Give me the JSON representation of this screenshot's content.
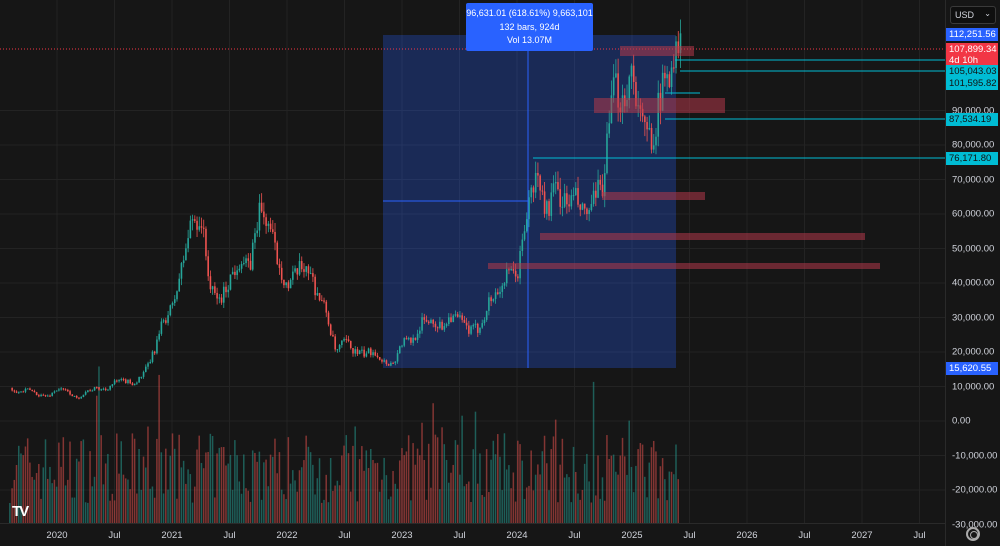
{
  "currency_select": "USD",
  "tooltip": {
    "line1": "96,631.01 (618.61%) 9,663,101",
    "line2": "132 bars, 924d",
    "line3": "Vol 13.07M"
  },
  "badges": {
    "high": "112,251.56",
    "current": "107,899.34",
    "countdown": "4d 10h",
    "level1": "105,043.03",
    "level2": "101,595.82",
    "level3": "87,534.19",
    "level4": "76,171.80",
    "low": "15,620.55"
  },
  "colors": {
    "up": "#26a69a",
    "down": "#ef5350",
    "measure": "#2962ff",
    "level": "#00bcd4",
    "zone": "#b2384a"
  },
  "chart_data": {
    "type": "candlestick",
    "x_start": "2019-08",
    "interval": "monthly closes (weekly bars drawn)",
    "closes": [
      9600,
      8300,
      9150,
      7550,
      7200,
      9350,
      8600,
      6400,
      8650,
      9450,
      9150,
      11350,
      11650,
      10800,
      13800,
      19700,
      29000,
      33100,
      45200,
      58800,
      57700,
      37300,
      35000,
      41500,
      47100,
      43800,
      61300,
      57000,
      46300,
      38500,
      43200,
      45500,
      37700,
      31800,
      19900,
      23300,
      20000,
      19400,
      20500,
      17200,
      16550,
      23100,
      23150,
      28500,
      29300,
      27200,
      30500,
      29200,
      26000,
      27000,
      34500,
      37700,
      42300,
      42600,
      61200,
      71300,
      60700,
      67500,
      62700,
      64600,
      59000,
      63300,
      70200,
      96400,
      93400,
      102400,
      84400,
      82500,
      94200,
      104600,
      107899
    ],
    "y_ticks": [
      "90,000.00",
      "80,000.00",
      "70,000.00",
      "60,000.00",
      "50,000.00",
      "40,000.00",
      "30,000.00",
      "20,000.00",
      "10,000.00",
      "0.00",
      "-10,000.00",
      "-20,000.00",
      "-30,000.00"
    ],
    "y_tick_values": [
      90000,
      80000,
      70000,
      60000,
      50000,
      40000,
      30000,
      20000,
      10000,
      0,
      -10000,
      -20000,
      -30000
    ],
    "x_ticks": [
      "2020",
      "Jul",
      "2021",
      "Jul",
      "2022",
      "Jul",
      "2023",
      "Jul",
      "2024",
      "Jul",
      "2025",
      "Jul",
      "2026",
      "Jul",
      "2027",
      "Jul"
    ],
    "levels": [
      105043.03,
      101595.82,
      87534.19,
      76171.8
    ],
    "measure": {
      "from": "2022-11",
      "to": "2025-06",
      "low": 15620.55,
      "high": 112251.56
    }
  }
}
